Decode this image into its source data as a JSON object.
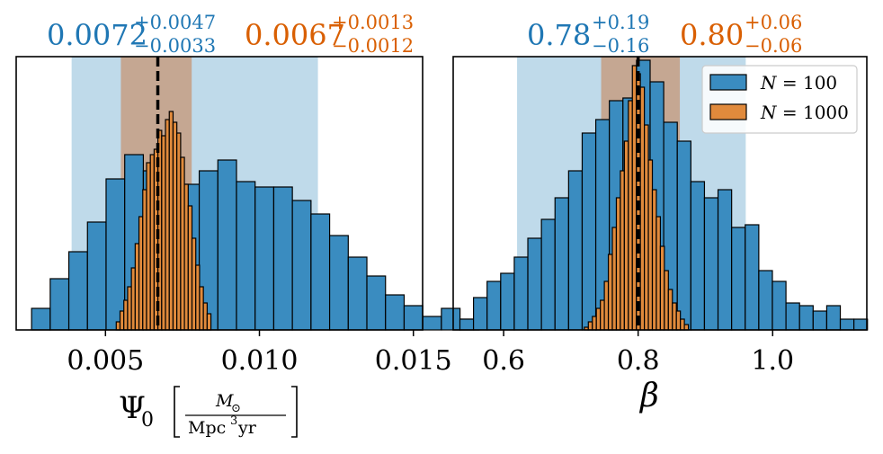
{
  "colors": {
    "blue": "#1f77b4",
    "blue_fill": "#3a8cc0",
    "blue_band": "#a9cde3",
    "orange": "#d95f02",
    "orange_fill": "#e08a3c",
    "orange_band": "#c59d83",
    "edge": "#000000"
  },
  "chart_data": [
    {
      "type": "histogram",
      "xlabel_symbol": "Ψ",
      "xlabel_sub": "0",
      "xlabel_frac_num": "M",
      "xlabel_frac_num_sub": "⊙",
      "xlabel_frac_den": "Mpc",
      "xlabel_frac_den_sup": "3",
      "xlabel_frac_den_tail": "yr",
      "xlim": [
        0.0021,
        0.0153
      ],
      "xticks": [
        0.005,
        0.01,
        0.015
      ],
      "xtick_labels": [
        "0.005",
        "0.010",
        "0.015"
      ],
      "ymax": 1.0,
      "truth": 0.0067,
      "annotations": [
        {
          "series": "N = 100",
          "median": "0.0072",
          "plus": "+0.0047",
          "minus": "−0.0033"
        },
        {
          "series": "N = 1000",
          "median": "0.0067",
          "plus": "+0.0013",
          "minus": "−0.0012"
        }
      ],
      "series": [
        {
          "name": "N = 100",
          "band": [
            0.0039,
            0.0119
          ],
          "bin_start": 0.0026,
          "bin_width": 0.000605,
          "heights": [
            0.08,
            0.19,
            0.29,
            0.4,
            0.56,
            0.65,
            0.59,
            0.55,
            0.54,
            0.59,
            0.63,
            0.55,
            0.53,
            0.53,
            0.48,
            0.43,
            0.35,
            0.27,
            0.2,
            0.13,
            0.09,
            0.05,
            0.08,
            0.04
          ]
        },
        {
          "name": "N = 1000",
          "band": [
            0.0055,
            0.0078
          ],
          "bin_start": 0.00535,
          "bin_width": 0.000123,
          "heights": [
            0.03,
            0.07,
            0.11,
            0.16,
            0.23,
            0.32,
            0.42,
            0.52,
            0.62,
            0.65,
            0.67,
            0.74,
            0.72,
            0.78,
            0.81,
            0.77,
            0.73,
            0.64,
            0.54,
            0.46,
            0.34,
            0.24,
            0.16,
            0.1,
            0.06
          ]
        }
      ]
    },
    {
      "type": "histogram",
      "xlabel_symbol": "β",
      "xlim": [
        0.525,
        1.14
      ],
      "xticks": [
        0.6,
        0.8,
        1.0
      ],
      "xtick_labels": [
        "0.6",
        "0.8",
        "1.0"
      ],
      "ymax": 1.0,
      "truth": 0.8,
      "annotations": [
        {
          "series": "N = 100",
          "median": "0.78",
          "plus": "+0.19",
          "minus": "−0.16"
        },
        {
          "series": "N = 1000",
          "median": "0.80",
          "plus": "+0.06",
          "minus": "−0.06"
        }
      ],
      "legend": {
        "position": "top-right",
        "entries": [
          {
            "label_var": "N",
            "label_rest": " = 100"
          },
          {
            "label_var": "N",
            "label_rest": " = 1000"
          }
        ]
      },
      "series": [
        {
          "name": "N = 100",
          "band": [
            0.62,
            0.96
          ],
          "bin_start": 0.535,
          "bin_width": 0.0202,
          "heights": [
            0.04,
            0.12,
            0.18,
            0.21,
            0.27,
            0.34,
            0.41,
            0.49,
            0.59,
            0.73,
            0.78,
            0.85,
            0.86,
            1.0,
            0.92,
            0.77,
            0.7,
            0.55,
            0.49,
            0.52,
            0.38,
            0.39,
            0.22,
            0.18,
            0.1,
            0.09,
            0.07,
            0.09,
            0.04,
            0.04
          ]
        },
        {
          "name": "N = 1000",
          "band": [
            0.745,
            0.862
          ],
          "bin_start": 0.72,
          "bin_width": 0.00595,
          "heights": [
            0.01,
            0.03,
            0.05,
            0.08,
            0.11,
            0.18,
            0.28,
            0.38,
            0.49,
            0.59,
            0.7,
            0.85,
            0.98,
            0.95,
            0.9,
            0.76,
            0.63,
            0.52,
            0.42,
            0.31,
            0.22,
            0.15,
            0.1,
            0.07,
            0.04,
            0.02
          ]
        }
      ]
    }
  ]
}
